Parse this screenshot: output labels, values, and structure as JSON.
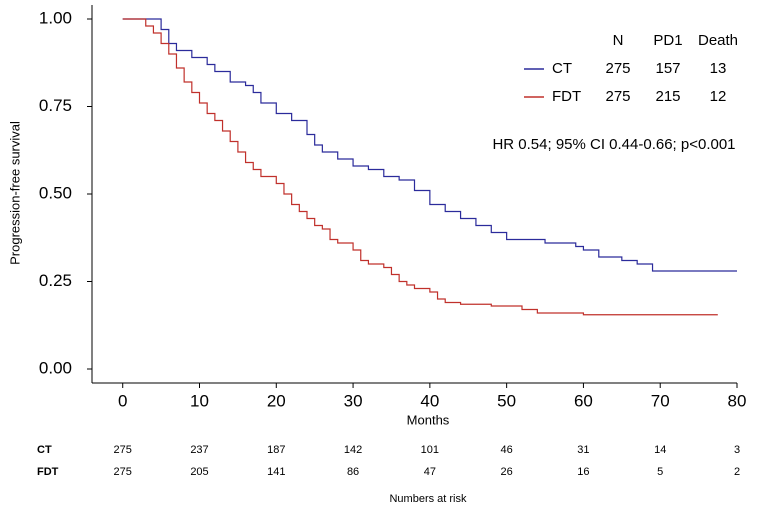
{
  "chart_data": {
    "type": "line",
    "step": "post",
    "x_label": "Months",
    "y_label": "Progression-free survival",
    "xlim": [
      -4,
      80
    ],
    "ylim": [
      -0.04,
      1.04
    ],
    "xticks": [
      0,
      10,
      20,
      30,
      40,
      50,
      60,
      70,
      80
    ],
    "yticks": [
      {
        "value": 0,
        "label": "0.00"
      },
      {
        "value": 0.25,
        "label": "0.25"
      },
      {
        "value": 0.5,
        "label": "0.50"
      },
      {
        "value": 0.75,
        "label": "0.75"
      },
      {
        "value": 1,
        "label": "1.00"
      }
    ],
    "series": [
      {
        "name": "CT",
        "color": "#2b2b9b",
        "x": [
          0,
          4,
          5,
          6,
          7,
          9,
          11,
          12,
          14,
          16,
          17,
          18,
          20,
          22,
          24,
          25,
          26,
          28,
          30,
          32,
          34,
          36,
          38,
          40,
          42,
          44,
          46,
          48,
          50,
          55,
          59,
          60,
          62,
          65,
          67,
          69,
          80
        ],
        "values": [
          1.0,
          1.0,
          0.97,
          0.93,
          0.91,
          0.89,
          0.87,
          0.85,
          0.82,
          0.81,
          0.79,
          0.76,
          0.73,
          0.71,
          0.67,
          0.64,
          0.62,
          0.6,
          0.58,
          0.57,
          0.55,
          0.54,
          0.51,
          0.47,
          0.45,
          0.43,
          0.41,
          0.39,
          0.37,
          0.36,
          0.35,
          0.34,
          0.32,
          0.31,
          0.3,
          0.28,
          0.28
        ]
      },
      {
        "name": "FDT",
        "color": "#c0302b",
        "x": [
          0,
          2,
          3,
          4,
          5,
          6,
          7,
          8,
          9,
          10,
          11,
          12,
          13,
          14,
          15,
          16,
          17,
          18,
          20,
          21,
          22,
          23,
          24,
          25,
          26,
          27,
          28,
          30,
          31,
          32,
          34,
          35,
          36,
          37,
          38,
          40,
          41,
          42,
          44,
          48,
          52,
          54,
          60,
          77.5
        ],
        "values": [
          1.0,
          1.0,
          0.98,
          0.96,
          0.93,
          0.9,
          0.86,
          0.82,
          0.79,
          0.76,
          0.73,
          0.71,
          0.68,
          0.65,
          0.62,
          0.59,
          0.57,
          0.55,
          0.53,
          0.5,
          0.47,
          0.45,
          0.43,
          0.41,
          0.4,
          0.37,
          0.36,
          0.34,
          0.31,
          0.3,
          0.29,
          0.27,
          0.25,
          0.24,
          0.23,
          0.22,
          0.2,
          0.19,
          0.185,
          0.18,
          0.17,
          0.16,
          0.155,
          0.155
        ]
      }
    ],
    "legend_table": {
      "columns": [
        "N",
        "PD1",
        "Death"
      ],
      "rows": [
        [
          275,
          157,
          13
        ],
        [
          275,
          215,
          12
        ]
      ]
    },
    "annotation": "HR 0.54; 95% CI 0.44-0.66; p<0.001",
    "risk_table": {
      "title": "Numbers at risk",
      "rows": [
        {
          "name": "CT",
          "values": [
            275,
            237,
            187,
            142,
            101,
            46,
            31,
            14,
            3
          ]
        },
        {
          "name": "FDT",
          "values": [
            275,
            205,
            141,
            86,
            47,
            26,
            16,
            5,
            2
          ]
        }
      ]
    }
  }
}
